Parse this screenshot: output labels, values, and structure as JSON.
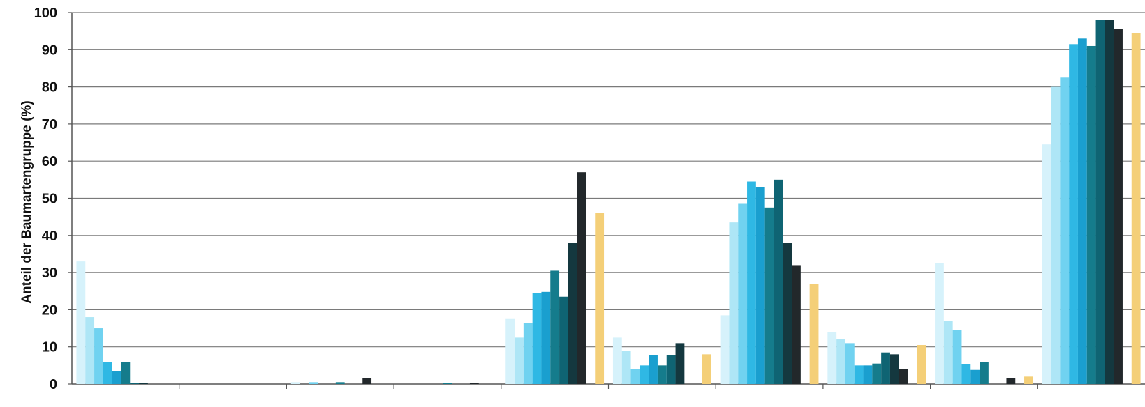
{
  "chart_data": {
    "type": "bar",
    "ylabel": "Anteil der Baumartengruppe (%)",
    "ylim": [
      0,
      100
    ],
    "yticks": [
      0,
      10,
      20,
      30,
      40,
      50,
      60,
      70,
      80,
      90,
      100
    ],
    "grid": true,
    "groups": 10,
    "series_colors": [
      "#d6f2fb",
      "#aee6f6",
      "#70d2f0",
      "#2fb8e4",
      "#1a9fcf",
      "#157c8c",
      "#0f6473",
      "#14383f",
      "#22282b",
      "#2f3438",
      "#f4cf78"
    ],
    "values": [
      [
        33,
        18,
        15,
        6,
        3.5,
        6,
        0.3,
        0.3,
        0,
        0,
        0
      ],
      [
        0,
        0,
        0,
        0,
        0,
        0,
        0,
        0,
        0,
        0,
        0
      ],
      [
        0.5,
        0,
        0.5,
        0,
        0,
        0.5,
        0,
        0,
        1.5,
        0,
        0
      ],
      [
        0,
        0,
        0,
        0,
        0,
        0.3,
        0,
        0,
        0.2,
        0,
        0
      ],
      [
        17.5,
        12.5,
        16.5,
        24.5,
        24.8,
        30.5,
        23.5,
        38,
        57,
        0,
        46
      ],
      [
        12.5,
        9,
        4,
        5,
        7.8,
        5,
        7.8,
        11,
        0,
        0,
        8
      ],
      [
        18.5,
        43.5,
        48.5,
        54.5,
        53,
        47.5,
        55,
        38,
        32,
        0,
        27
      ],
      [
        14,
        12,
        11,
        5,
        5,
        5.5,
        8.5,
        8,
        4,
        0,
        10.5
      ],
      [
        32.5,
        17,
        14.5,
        5.3,
        3.8,
        6,
        0,
        0,
        1.5,
        0,
        2
      ],
      [
        64.5,
        80,
        82.5,
        91.5,
        93,
        91,
        98,
        98,
        95.5,
        0,
        94.5
      ]
    ]
  }
}
